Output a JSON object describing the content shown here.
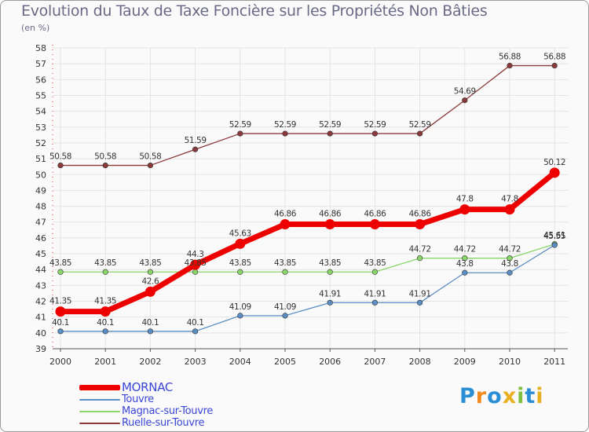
{
  "chart_data": {
    "type": "line",
    "title": "Evolution du Taux de Taxe Foncière sur les Propriétés Non Bâties",
    "subtitle": "(en %)",
    "xlabel": "",
    "ylabel": "",
    "ylim": [
      39,
      58
    ],
    "y_ticks": [
      39,
      40,
      41,
      42,
      43,
      44,
      45,
      46,
      47,
      48,
      49,
      50,
      51,
      52,
      53,
      54,
      55,
      56,
      57,
      58
    ],
    "categories": [
      "2000",
      "2001",
      "2002",
      "2003",
      "2004",
      "2005",
      "2006",
      "2007",
      "2008",
      "2009",
      "2010",
      "2011"
    ],
    "series": [
      {
        "name": "Ruelle-sur-Touvre",
        "color": "#8b3a3a",
        "values": [
          50.58,
          50.58,
          50.58,
          51.59,
          52.59,
          52.59,
          52.59,
          52.59,
          52.59,
          54.69,
          56.88,
          56.88
        ],
        "labels": [
          "50.58",
          "50.58",
          "50.58",
          "51.59",
          "52.59",
          "52.59",
          "52.59",
          "52.59",
          "52.59",
          "54.69",
          "56.88",
          "56.88"
        ]
      },
      {
        "name": "Magnac-sur-Touvre",
        "color": "#8ad66a",
        "values": [
          43.85,
          43.85,
          43.85,
          43.85,
          43.85,
          43.85,
          43.85,
          43.85,
          44.72,
          44.72,
          44.72,
          45.61
        ],
        "labels": [
          "43.85",
          "43.85",
          "43.85",
          "43.85",
          "43.85",
          "43.85",
          "43.85",
          "43.85",
          "44.72",
          "44.72",
          "44.72",
          "45.61"
        ]
      },
      {
        "name": "Touvre",
        "color": "#5b8ec4",
        "values": [
          40.1,
          40.1,
          40.1,
          40.1,
          41.09,
          41.09,
          41.91,
          41.91,
          41.91,
          43.8,
          43.8,
          45.55
        ],
        "labels": [
          "40.1",
          "40.1",
          "40.1",
          "40.1",
          "41.09",
          "41.09",
          "41.91",
          "41.91",
          "41.91",
          "43.8",
          "43.8",
          "45.55"
        ]
      },
      {
        "name": "MORNAC",
        "color": "#ee0000",
        "values": [
          41.35,
          41.35,
          42.6,
          44.3,
          45.63,
          46.86,
          46.86,
          46.86,
          46.86,
          47.8,
          47.8,
          50.12
        ],
        "labels": [
          "41.35",
          "41.35",
          "42.6",
          "44.3",
          "45.63",
          "46.86",
          "46.86",
          "46.86",
          "46.86",
          "47.8",
          "47.8",
          "50.12"
        ]
      }
    ],
    "legend": {
      "placement": "bottom-left",
      "entries": [
        "MORNAC",
        "Touvre",
        "Magnac-sur-Touvre",
        "Ruelle-sur-Touvre"
      ]
    }
  },
  "branding": {
    "logo_text": "Proxiti",
    "logo_letters": [
      "P",
      "r",
      "o",
      "x",
      "i",
      "t",
      "i"
    ],
    "logo_colors": [
      "#2a8ed6",
      "#f08a1c",
      "#2a8ed6",
      "#e8b020",
      "#80c040",
      "#2a8ed6",
      "#e8b020"
    ]
  }
}
